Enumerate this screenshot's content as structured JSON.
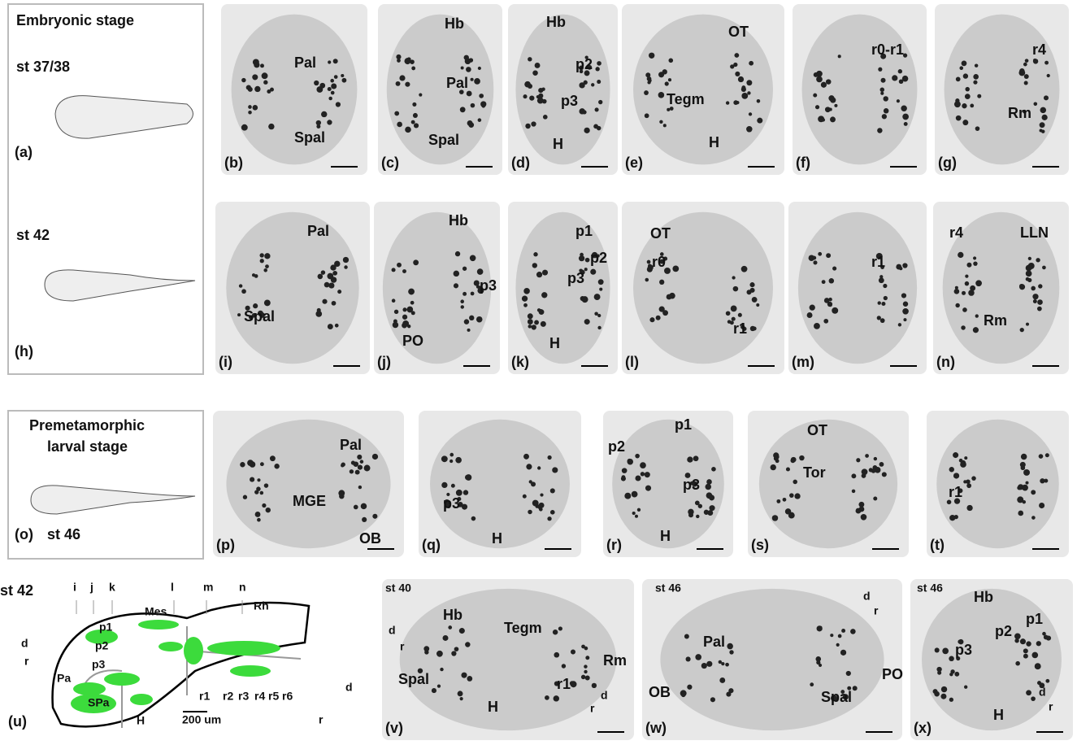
{
  "boxes": [
    {
      "title": [
        "Embryonic stage"
      ],
      "items": [
        "st 37/38",
        "(a)",
        "st 42",
        "(h)"
      ]
    },
    {
      "title": [
        "Premetamorphic",
        "larval stage"
      ],
      "items": [
        "(o)",
        "st 46"
      ]
    }
  ],
  "panels": [
    {
      "letter": "(b)",
      "labels": [
        "Pal",
        "Spal"
      ]
    },
    {
      "letter": "(c)",
      "labels": [
        "Hb",
        "Pal",
        "Spal"
      ]
    },
    {
      "letter": "(d)",
      "labels": [
        "Hb",
        "p2",
        "p3",
        "H"
      ]
    },
    {
      "letter": "(e)",
      "labels": [
        "OT",
        "Tegm",
        "H"
      ]
    },
    {
      "letter": "(f)",
      "labels": [
        "r0-r1"
      ]
    },
    {
      "letter": "(g)",
      "labels": [
        "r4",
        "Rm"
      ]
    },
    {
      "letter": "(i)",
      "labels": [
        "Pal",
        "Spal"
      ]
    },
    {
      "letter": "(j)",
      "labels": [
        "Hb",
        "p3",
        "PO"
      ]
    },
    {
      "letter": "(k)",
      "labels": [
        "p1",
        "p2",
        "p3",
        "H"
      ]
    },
    {
      "letter": "(l)",
      "labels": [
        "OT",
        "r0",
        "r1"
      ]
    },
    {
      "letter": "(m)",
      "labels": [
        "r1"
      ]
    },
    {
      "letter": "(n)",
      "labels": [
        "r4",
        "LLN",
        "Rm"
      ]
    },
    {
      "letter": "(p)",
      "labels": [
        "Pal",
        "MGE",
        "OB"
      ]
    },
    {
      "letter": "(q)",
      "labels": [
        "p3",
        "H"
      ]
    },
    {
      "letter": "(r)",
      "labels": [
        "p1",
        "p2",
        "p3",
        "H"
      ]
    },
    {
      "letter": "(s)",
      "labels": [
        "OT",
        "Tor"
      ]
    },
    {
      "letter": "(t)",
      "labels": [
        "r1"
      ]
    },
    {
      "letter": "(v)",
      "labels": [
        "st 40",
        "Hb",
        "Tegm",
        "Spal",
        "H",
        "r1",
        "Rm",
        "d",
        "r",
        "d",
        "r"
      ]
    },
    {
      "letter": "(w)",
      "labels": [
        "st 46",
        "Pal",
        "OB",
        "Spal",
        "PO",
        "d",
        "r"
      ]
    },
    {
      "letter": "(x)",
      "labels": [
        "st 46",
        "Hb",
        "p1",
        "p2",
        "p3",
        "H",
        "d",
        "r"
      ]
    }
  ],
  "schematic": {
    "letter": "(u)",
    "labels": [
      "st 42",
      "i",
      "j",
      "k",
      "l",
      "m",
      "n",
      "Mes",
      "Rh",
      "p1",
      "p2",
      "p3",
      "Pa",
      "SPa",
      "H",
      "r1",
      "r2",
      "r3",
      "r4",
      "r5",
      "r6",
      "200 um",
      "d",
      "r",
      "d",
      "r"
    ]
  }
}
